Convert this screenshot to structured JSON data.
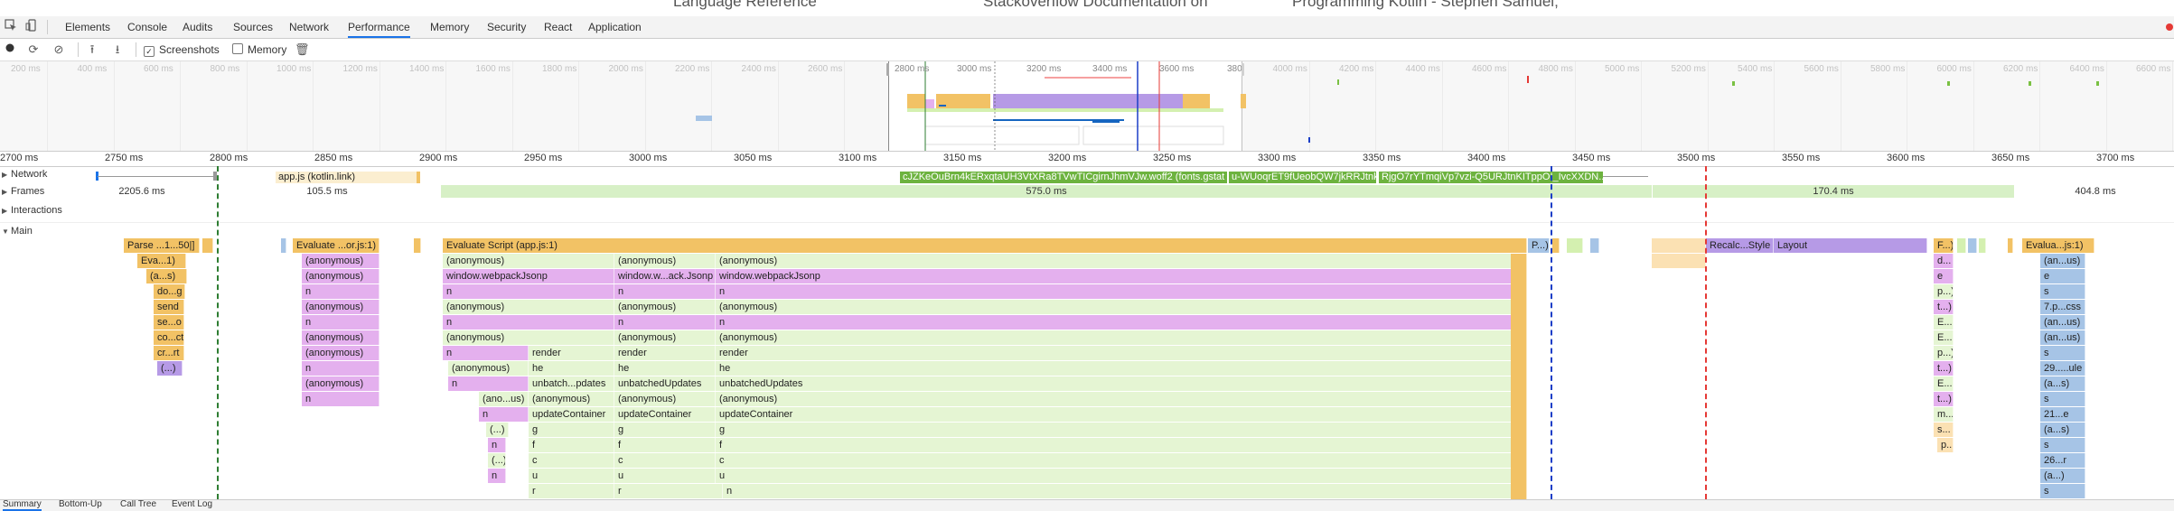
{
  "browser_strip": {
    "texts": [
      "Language Reference",
      "Stackoverflow Documentation on",
      "Programming Kotlin - Stephen Samuel;"
    ]
  },
  "devtools": {
    "icons": [
      "inspect-icon",
      "device-toggle-icon"
    ],
    "tabs": [
      "Elements",
      "Console",
      "Audits",
      "Sources",
      "Network",
      "Performance",
      "Memory",
      "Security",
      "React",
      "Application"
    ],
    "active_tab": "Performance",
    "error_indicator": "error-count-icon"
  },
  "toolbar": {
    "screenshots_label": "Screenshots",
    "screenshots_checked": true,
    "memory_label": "Memory",
    "memory_checked": false,
    "buttons": [
      "record-icon",
      "reload-icon",
      "clear-icon",
      "upload-icon",
      "download-icon",
      "garbage-collect-icon"
    ]
  },
  "overview": {
    "labels": [
      "200 ms",
      "400 ms",
      "600 ms",
      "800 ms",
      "1000 ms",
      "1200 ms",
      "1400 ms",
      "1600 ms",
      "1800 ms",
      "2000 ms",
      "2200 ms",
      "2400 ms",
      "2600 ms",
      "2800 ms",
      "3000 ms",
      "3200 ms",
      "3400 ms",
      "3600 ms",
      "380",
      "4000 ms",
      "4200 ms",
      "4400 ms",
      "4600 ms",
      "4800 ms",
      "5000 ms",
      "5200 ms",
      "5400 ms",
      "5600 ms",
      "5800 ms",
      "6000 ms",
      "6200 ms",
      "6400 ms",
      "6600 ms"
    ]
  },
  "ruler": {
    "labels": [
      "2700 ms",
      "2750 ms",
      "2800 ms",
      "2850 ms",
      "2900 ms",
      "2950 ms",
      "3000 ms",
      "3050 ms",
      "3100 ms",
      "3150 ms",
      "3200 ms",
      "3250 ms",
      "3300 ms",
      "3350 ms",
      "3400 ms",
      "3450 ms",
      "3500 ms",
      "3550 ms",
      "3600 ms",
      "3650 ms",
      "3700 ms"
    ]
  },
  "tracks": {
    "network": "Network",
    "frames": "Frames",
    "interactions": "Interactions",
    "main": "Main"
  },
  "network": {
    "app_js": "app.js (kotlin.link)",
    "font1": "cJZKeOuBrn4kERxqtaUH3VtXRa8TVwTICgirnJhmVJw.woff2 (fonts.gstat",
    "font2": "u-WUoqrET9fUeobQW7jkRRJtnkM",
    "font3": "RjgO7rYTmqiVp7vzi-Q5URJtnKITppOI_IvcXXDN..."
  },
  "frames": [
    "2205.6 ms",
    "105.5 ms",
    "575.0 ms",
    "170.4 ms",
    "404.8 ms"
  ],
  "flame": {
    "parse": "Parse ...1...50|]",
    "eva1": "Eva...1)",
    "as": "(a...s)",
    "dog": "do...g",
    "send": "send",
    "seo": "se...o",
    "coct": "co...ct",
    "crrt": "cr...rt",
    "paren": "(...)",
    "evaluate_or": "Evaluate ...or.js:1)",
    "anonymous": "(anonymous)",
    "n": "n",
    "unbatch_pdates": "unbatch...pdates",
    "evaluate_app": "Evaluate Script (app.js:1)",
    "webpack_jsonp": "window.webpackJsonp",
    "webpack_ack": "window.w...ack.Jsonp",
    "render": "render",
    "he": "he",
    "unbatchedUpdates": "unbatchedUpdates",
    "ano_us": "(ano...us)",
    "updateContainer": "updateContainer",
    "g": "g",
    "f": "f",
    "c": "c",
    "u": "u",
    "r": "r",
    "p_": "P...)",
    "recalc_style": "Recalc...Style",
    "layout": "Layout",
    "f_": "F...)",
    "d_": "d...",
    "e": "e",
    "p_dots": "p...)",
    "t_dots": "t...)",
    "E_dots": "E...",
    "E_r": "E...r",
    "m_dots": "m...",
    "s_dots": "s...",
    "p_dots2": "p...",
    "evalua": "Evalua...js:1)",
    "an_us": "(an...us)",
    "s": "s",
    "7pcss": "7.p...css",
    "29ule": "29.....ule",
    "a_s": "(a...s)",
    "21e": "21...e",
    "26r": "26...r",
    "a_dots": "(a...)"
  },
  "bottom_tabs": [
    "Summary",
    "Bottom-Up",
    "Call Tree",
    "Event Log"
  ]
}
